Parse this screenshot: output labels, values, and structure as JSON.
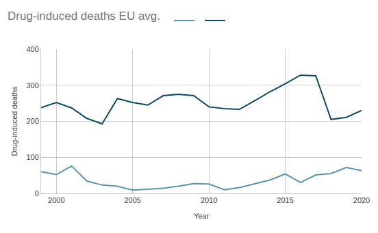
{
  "chart_data": {
    "type": "line",
    "title": "Drug-induced deaths EU avg.",
    "x_label": "Year",
    "y_label": "Drug-induced deaths",
    "x": [
      1999,
      2000,
      2001,
      2002,
      2003,
      2004,
      2005,
      2006,
      2007,
      2008,
      2009,
      2010,
      2011,
      2012,
      2013,
      2014,
      2015,
      2016,
      2017,
      2018,
      2019,
      2020
    ],
    "series": [
      {
        "color": "#5b95ad",
        "values": [
          60,
          52,
          76,
          34,
          23,
          20,
          9,
          12,
          14,
          20,
          27,
          26,
          10,
          16,
          27,
          37,
          54,
          30,
          51,
          55,
          72,
          63
        ]
      },
      {
        "color": "#0e4a5f",
        "values": [
          238,
          252,
          237,
          208,
          193,
          263,
          252,
          245,
          271,
          275,
          271,
          240,
          235,
          233,
          257,
          282,
          304,
          328,
          326,
          205,
          211,
          230
        ]
      }
    ],
    "xlim": [
      1999,
      2020
    ],
    "xticks": [
      2000,
      2005,
      2010,
      2015,
      2020
    ],
    "ylim": [
      0,
      400
    ],
    "yticks": [
      0,
      100,
      200,
      300,
      400
    ],
    "grid": true,
    "legend": "top"
  }
}
